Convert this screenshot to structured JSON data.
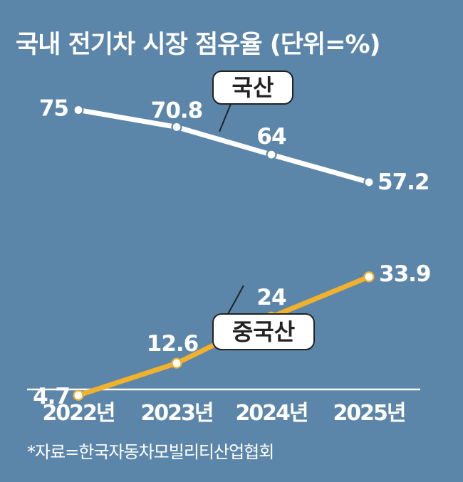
{
  "chart_data": {
    "type": "line",
    "title": "국내 전기차 시장 점유율 (단위=%)",
    "categories": [
      "2022년",
      "2023년",
      "2024년",
      "2025년"
    ],
    "series": [
      {
        "name": "국산",
        "values": [
          75,
          70.8,
          64,
          57.2
        ],
        "labels": [
          "75",
          "70.8",
          "64",
          "57.2"
        ],
        "color": "#ffffff"
      },
      {
        "name": "중국산",
        "values": [
          4.7,
          12.6,
          24,
          33.9
        ],
        "labels": [
          "4.7",
          "12.6",
          "24",
          "33.9"
        ],
        "color": "#f2b12c"
      }
    ],
    "ylim": [
      0,
      80
    ],
    "grid": false,
    "legend": "callout labels on lines"
  },
  "footer": {
    "source": "*자료=한국자동차모빌리티산업협회"
  },
  "colors": {
    "background": "#5b86a9",
    "domestic": "#ffffff",
    "chinese": "#f2b12c",
    "tag_text": "#222222"
  }
}
